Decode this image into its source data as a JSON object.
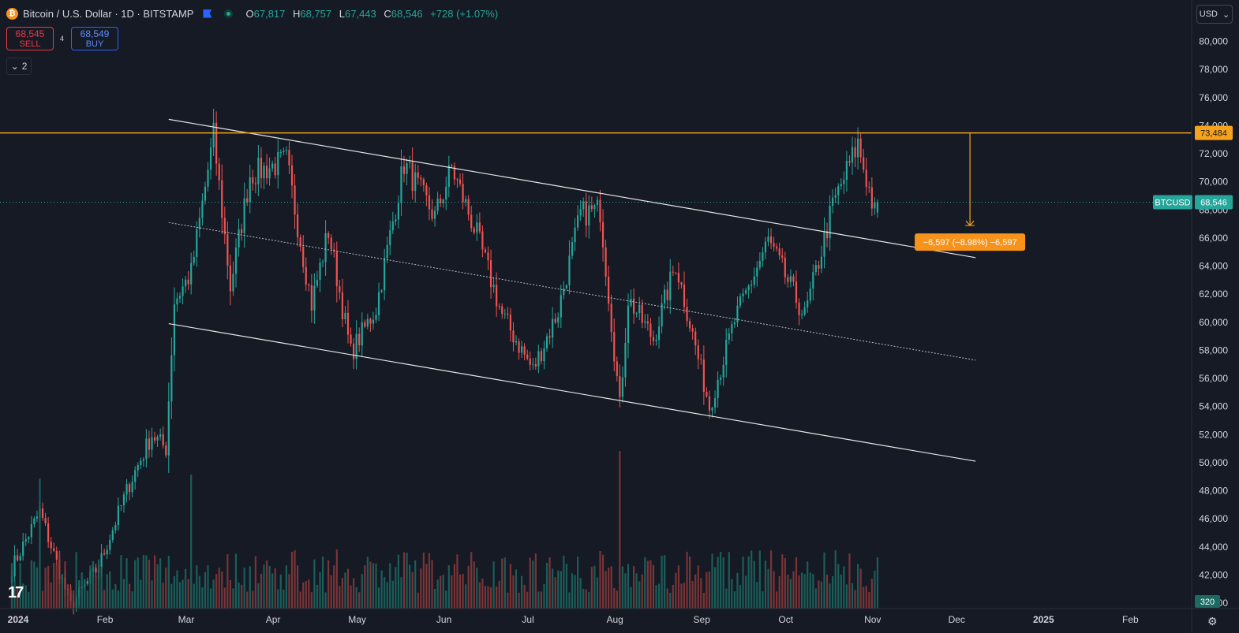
{
  "header": {
    "logo_text": "₿",
    "title": "Bitcoin / U.S. Dollar · 1D · BITSTAMP",
    "ohlc": [
      {
        "key": "O",
        "value": "67,817"
      },
      {
        "key": "H",
        "value": "68,757"
      },
      {
        "key": "L",
        "value": "67,443"
      },
      {
        "key": "C",
        "value": "68,546"
      }
    ],
    "change": "+728 (+1.07%)"
  },
  "trade": {
    "sell_price": "68,545",
    "sell_label": "SELL",
    "spread": "4",
    "buy_price": "68,549",
    "buy_label": "BUY"
  },
  "indicators_toggle": {
    "icon": "⌄",
    "count": "2"
  },
  "currency": {
    "label": "USD",
    "icon": "⌄"
  },
  "tv_logo": "17",
  "settings_icon": "⚙",
  "colors": {
    "background": "#161a25",
    "up": "#26a69a",
    "down": "#ef5350",
    "up_volume": "#1b6b63",
    "down_volume": "#8c3a3a",
    "price_line": "#26a69a",
    "horizontal_line": "#f7a21b",
    "channel": "#e6e6e6"
  },
  "chart_data": {
    "type": "candlestick",
    "symbol": "BTCUSD",
    "interval": "1D",
    "exchange": "BITSTAMP",
    "y_ticks": [
      "80,000",
      "78,000",
      "76,000",
      "74,000",
      "72,000",
      "70,000",
      "68,000",
      "66,000",
      "64,000",
      "62,000",
      "60,000",
      "58,000",
      "56,000",
      "54,000",
      "52,000",
      "50,000",
      "48,000",
      "46,000",
      "44,000",
      "42,000",
      "40,000"
    ],
    "ylim": [
      40000,
      81000
    ],
    "x_ticks": [
      "2024",
      "Feb",
      "Mar",
      "Apr",
      "May",
      "Jun",
      "Jul",
      "Aug",
      "Sep",
      "Oct",
      "Nov",
      "Dec",
      "2025",
      "Feb"
    ],
    "x_tick_dates": [
      "2024-01-01",
      "2024-02-01",
      "2024-03-01",
      "2024-04-01",
      "2024-05-01",
      "2024-06-01",
      "2024-07-01",
      "2024-08-01",
      "2024-09-01",
      "2024-10-01",
      "2024-11-01",
      "2024-12-01",
      "2025-01-01",
      "2025-02-01"
    ],
    "last_price": 68546,
    "last_price_label": "68,546",
    "last_price_tag": "BTCUSD",
    "horizontal_level": 73484,
    "horizontal_level_label": "73,484",
    "volume_label": "320",
    "measure": {
      "from": 73484,
      "to": 66887,
      "date": "2024-12-08",
      "label": "−6,597 (−8.98%) −6,597"
    },
    "channel_lines": [
      {
        "name": "upper",
        "start": [
          "2024-02-26",
          74450
        ],
        "end": [
          "2024-12-10",
          64600
        ]
      },
      {
        "name": "middle",
        "start": [
          "2024-02-26",
          67100
        ],
        "end": [
          "2024-12-10",
          57300
        ]
      },
      {
        "name": "lower",
        "start": [
          "2024-02-26",
          59900
        ],
        "end": [
          "2024-12-10",
          50100
        ]
      }
    ],
    "key_points": [
      {
        "date": "2024-01-01",
        "price": 42500
      },
      {
        "date": "2024-01-11",
        "price": 46500
      },
      {
        "date": "2024-01-22",
        "price": 39800
      },
      {
        "date": "2024-02-01",
        "price": 42600
      },
      {
        "date": "2024-02-12",
        "price": 48500
      },
      {
        "date": "2024-02-20",
        "price": 52000
      },
      {
        "date": "2024-02-25",
        "price": 51000
      },
      {
        "date": "2024-02-28",
        "price": 61500
      },
      {
        "date": "2024-03-05",
        "price": 63500
      },
      {
        "date": "2024-03-13",
        "price": 73300
      },
      {
        "date": "2024-03-19",
        "price": 62500
      },
      {
        "date": "2024-03-26",
        "price": 70500
      },
      {
        "date": "2024-04-08",
        "price": 71500
      },
      {
        "date": "2024-04-17",
        "price": 61300
      },
      {
        "date": "2024-04-23",
        "price": 66500
      },
      {
        "date": "2024-05-01",
        "price": 57800
      },
      {
        "date": "2024-05-10",
        "price": 61000
      },
      {
        "date": "2024-05-20",
        "price": 71300
      },
      {
        "date": "2024-05-31",
        "price": 67500
      },
      {
        "date": "2024-06-06",
        "price": 71000
      },
      {
        "date": "2024-06-15",
        "price": 66200
      },
      {
        "date": "2024-06-24",
        "price": 60500
      },
      {
        "date": "2024-07-05",
        "price": 56600
      },
      {
        "date": "2024-07-14",
        "price": 60800
      },
      {
        "date": "2024-07-22",
        "price": 67700
      },
      {
        "date": "2024-07-29",
        "price": 68000
      },
      {
        "date": "2024-08-05",
        "price": 54000
      },
      {
        "date": "2024-08-08",
        "price": 61700
      },
      {
        "date": "2024-08-17",
        "price": 58800
      },
      {
        "date": "2024-08-25",
        "price": 64200
      },
      {
        "date": "2024-09-06",
        "price": 54000
      },
      {
        "date": "2024-09-15",
        "price": 60100
      },
      {
        "date": "2024-09-27",
        "price": 65800
      },
      {
        "date": "2024-10-10",
        "price": 60400
      },
      {
        "date": "2024-10-20",
        "price": 68300
      },
      {
        "date": "2024-10-29",
        "price": 72700
      },
      {
        "date": "2024-11-04",
        "price": 67800
      },
      {
        "date": "2024-11-05",
        "price": 68546
      }
    ]
  }
}
